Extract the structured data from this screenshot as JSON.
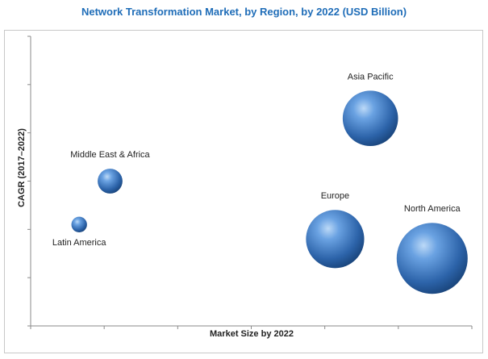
{
  "chart_data": {
    "type": "bubble",
    "title": "Network Transformation Market, by Region, by 2022 (USD Billion)",
    "xlabel": "Market Size by 2022",
    "ylabel": "CAGR (2017–2022)",
    "grid": false,
    "legend": "none",
    "bubble_color": "#3f7fc8",
    "series": [
      {
        "name": "Asia Pacific",
        "x": 7.7,
        "y": 4.3,
        "size": 0.78
      },
      {
        "name": "Middle East & Africa",
        "x": 1.8,
        "y": 3.0,
        "size": 0.35
      },
      {
        "name": "Latin America",
        "x": 1.1,
        "y": 2.1,
        "size": 0.22
      },
      {
        "name": "Europe",
        "x": 6.9,
        "y": 1.8,
        "size": 0.82
      },
      {
        "name": "North America",
        "x": 9.1,
        "y": 1.4,
        "size": 1.0
      }
    ]
  }
}
